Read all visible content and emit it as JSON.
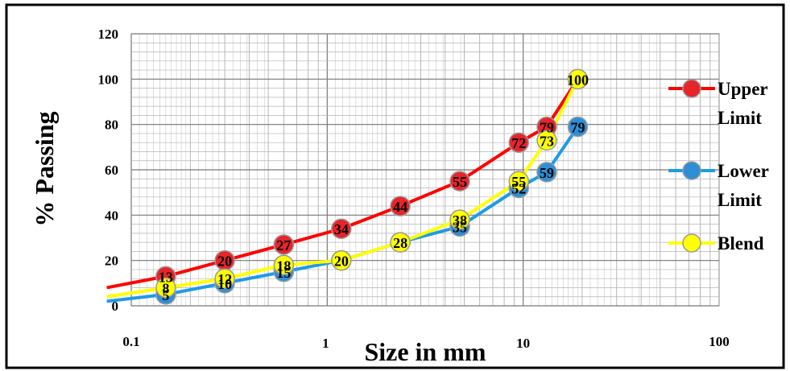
{
  "chart_data": {
    "type": "line",
    "title": "",
    "xlabel": "Size in mm",
    "ylabel": "% Passing",
    "x_scale": "log",
    "xlim": [
      0.1,
      100
    ],
    "ylim": [
      0,
      120
    ],
    "x_ticks": [
      "0.1",
      "1",
      "10",
      "100"
    ],
    "y_ticks": [
      "0",
      "20",
      "40",
      "60",
      "80",
      "100",
      "120"
    ],
    "grid": true,
    "legend_position": "right",
    "series": [
      {
        "name": "Upper Limit",
        "color": "#ff0000",
        "marker_color": "#e8242b",
        "x": [
          0.075,
          0.15,
          0.3,
          0.6,
          1.18,
          2.36,
          4.75,
          9.5,
          13.2,
          19
        ],
        "y": [
          8,
          13,
          20,
          27,
          34,
          44,
          55,
          72,
          79,
          100
        ],
        "labels": [
          "",
          "13",
          "20",
          "27",
          "34",
          "44",
          "55",
          "72",
          "79",
          ""
        ]
      },
      {
        "name": "Lower Limit",
        "color": "#1e9be6",
        "marker_color": "#2e8fd6",
        "x": [
          0.075,
          0.15,
          0.3,
          0.6,
          1.18,
          2.36,
          4.75,
          9.5,
          13.2,
          19
        ],
        "y": [
          2,
          5,
          10,
          15,
          20,
          28,
          35,
          52,
          59,
          79
        ],
        "labels": [
          "",
          "5",
          "10",
          "15",
          "",
          "",
          "35",
          "52",
          "59",
          "79"
        ]
      },
      {
        "name": "Blend",
        "color": "#ffff00",
        "marker_color": "#ffff00",
        "x": [
          0.075,
          0.15,
          0.3,
          0.6,
          1.18,
          2.36,
          4.75,
          9.5,
          13.2,
          19
        ],
        "y": [
          4,
          8,
          12,
          18,
          20,
          28,
          38,
          55,
          73,
          100
        ],
        "labels": [
          "",
          "8",
          "12",
          "18",
          "20",
          "28",
          "38",
          "55",
          "73",
          "100"
        ]
      }
    ]
  }
}
